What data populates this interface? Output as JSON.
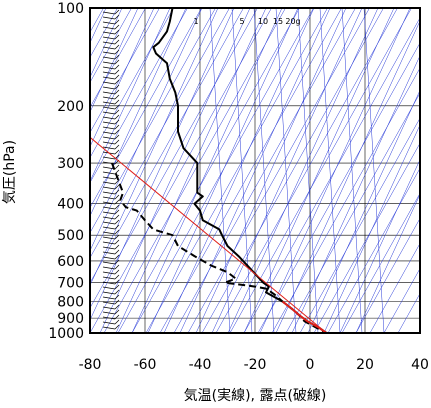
{
  "chart_data": {
    "type": "line",
    "title": "",
    "xlabel": "気温(実線), 露点(破線)",
    "ylabel": "気圧(hPa)",
    "xlim": [
      -80,
      40
    ],
    "ylim": [
      1000,
      100
    ],
    "y_scale": "log",
    "x_ticks": [
      "-80",
      "-60",
      "-40",
      "-20",
      "0",
      "20",
      "40"
    ],
    "y_ticks": [
      {
        "p": 100,
        "label": "100"
      },
      {
        "p": 200,
        "label": "200"
      },
      {
        "p": 300,
        "label": "300"
      },
      {
        "p": 400,
        "label": "400"
      },
      {
        "p": 500,
        "label": "500"
      },
      {
        "p": 600,
        "label": "600"
      },
      {
        "p": 700,
        "label": "700"
      },
      {
        "p": 800,
        "label": "800"
      },
      {
        "p": 900,
        "label": "900"
      },
      {
        "p": 1000,
        "label": "1000"
      }
    ],
    "mixing_ratio_labels": [
      "1",
      "5",
      "10",
      "15",
      "20g"
    ],
    "grid": true,
    "series": [
      {
        "style": "solid",
        "color": "#000000",
        "points": [
          [
            -50,
            100
          ],
          [
            -51,
            110
          ],
          [
            -52,
            118
          ],
          [
            -55,
            128
          ],
          [
            -57,
            132
          ],
          [
            -56,
            138
          ],
          [
            -52,
            148
          ],
          [
            -51,
            165
          ],
          [
            -49,
            182
          ],
          [
            -48,
            200
          ],
          [
            -48,
            240
          ],
          [
            -46,
            270
          ],
          [
            -41,
            300
          ],
          [
            -41,
            330
          ],
          [
            -41,
            370
          ],
          [
            -39,
            380
          ],
          [
            -42,
            400
          ],
          [
            -40,
            420
          ],
          [
            -39,
            450
          ],
          [
            -33,
            480
          ],
          [
            -32,
            500
          ],
          [
            -30,
            540
          ],
          [
            -26,
            580
          ],
          [
            -22,
            630
          ],
          [
            -17,
            700
          ],
          [
            -15,
            720
          ],
          [
            -16,
            750
          ],
          [
            -10,
            800
          ],
          [
            -6,
            850
          ],
          [
            -4,
            880
          ],
          [
            -1,
            920
          ],
          [
            3,
            960
          ],
          [
            6,
            1000
          ]
        ]
      },
      {
        "style": "dashed",
        "color": "#000000",
        "points": [
          [
            -72,
            300
          ],
          [
            -68,
            370
          ],
          [
            -69,
            390
          ],
          [
            -67,
            410
          ],
          [
            -63,
            420
          ],
          [
            -60,
            450
          ],
          [
            -57,
            480
          ],
          [
            -50,
            500
          ],
          [
            -48,
            540
          ],
          [
            -42,
            580
          ],
          [
            -36,
            620
          ],
          [
            -30,
            650
          ],
          [
            -27,
            680
          ],
          [
            -31,
            700
          ],
          [
            -25,
            710
          ],
          [
            -20,
            720
          ],
          [
            -16,
            730
          ],
          [
            -13,
            760
          ],
          [
            -10,
            800
          ],
          [
            -6,
            850
          ],
          [
            -4,
            880
          ],
          [
            -2,
            920
          ],
          [
            2,
            960
          ],
          [
            6,
            1000
          ]
        ]
      },
      {
        "style": "reference",
        "color": "#e0201a",
        "points": [
          [
            -80,
            250
          ],
          [
            6,
            1000
          ]
        ]
      }
    ]
  }
}
